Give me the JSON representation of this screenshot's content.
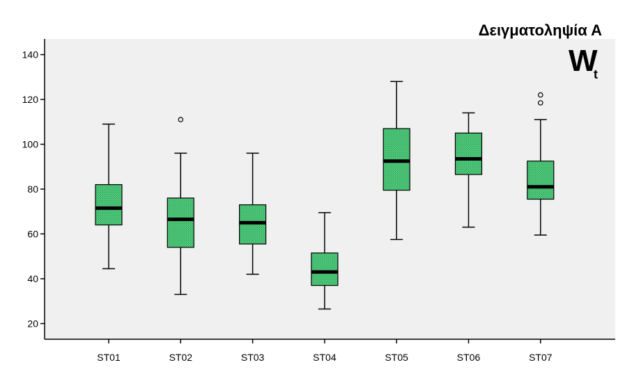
{
  "chart_data": {
    "type": "boxplot",
    "title": "Δειγματοληψία Α",
    "annotation": {
      "main": "W",
      "subscript": "t"
    },
    "xlabel": "",
    "ylabel": "",
    "ylim": [
      13,
      147
    ],
    "yticks": [
      20,
      40,
      60,
      80,
      100,
      120,
      140
    ],
    "grid": false,
    "categories": [
      "ST01",
      "ST02",
      "ST03",
      "ST04",
      "ST05",
      "ST06",
      "ST07"
    ],
    "boxes": [
      {
        "category": "ST01",
        "min": 44.5,
        "q1": 64,
        "median": 71.5,
        "q3": 82,
        "max": 109,
        "outliers": []
      },
      {
        "category": "ST02",
        "min": 33,
        "q1": 54,
        "median": 66.5,
        "q3": 76,
        "max": 96,
        "outliers": [
          111
        ]
      },
      {
        "category": "ST03",
        "min": 42,
        "q1": 55.5,
        "median": 65,
        "q3": 73,
        "max": 96,
        "outliers": []
      },
      {
        "category": "ST04",
        "min": 26.5,
        "q1": 37,
        "median": 43,
        "q3": 51.5,
        "max": 69.5,
        "outliers": []
      },
      {
        "category": "ST05",
        "min": 57.5,
        "q1": 79.5,
        "median": 92.5,
        "q3": 107,
        "max": 128,
        "outliers": []
      },
      {
        "category": "ST06",
        "min": 63,
        "q1": 86.5,
        "median": 93.5,
        "q3": 105,
        "max": 114,
        "outliers": []
      },
      {
        "category": "ST07",
        "min": 59.5,
        "q1": 75.5,
        "median": 81,
        "q3": 92.5,
        "max": 111,
        "outliers": [
          118.5,
          122
        ]
      }
    ],
    "colors": {
      "box_fill": "#4fc97a",
      "box_stroke": "#000000",
      "plot_bg": "#f0f0f0"
    }
  }
}
